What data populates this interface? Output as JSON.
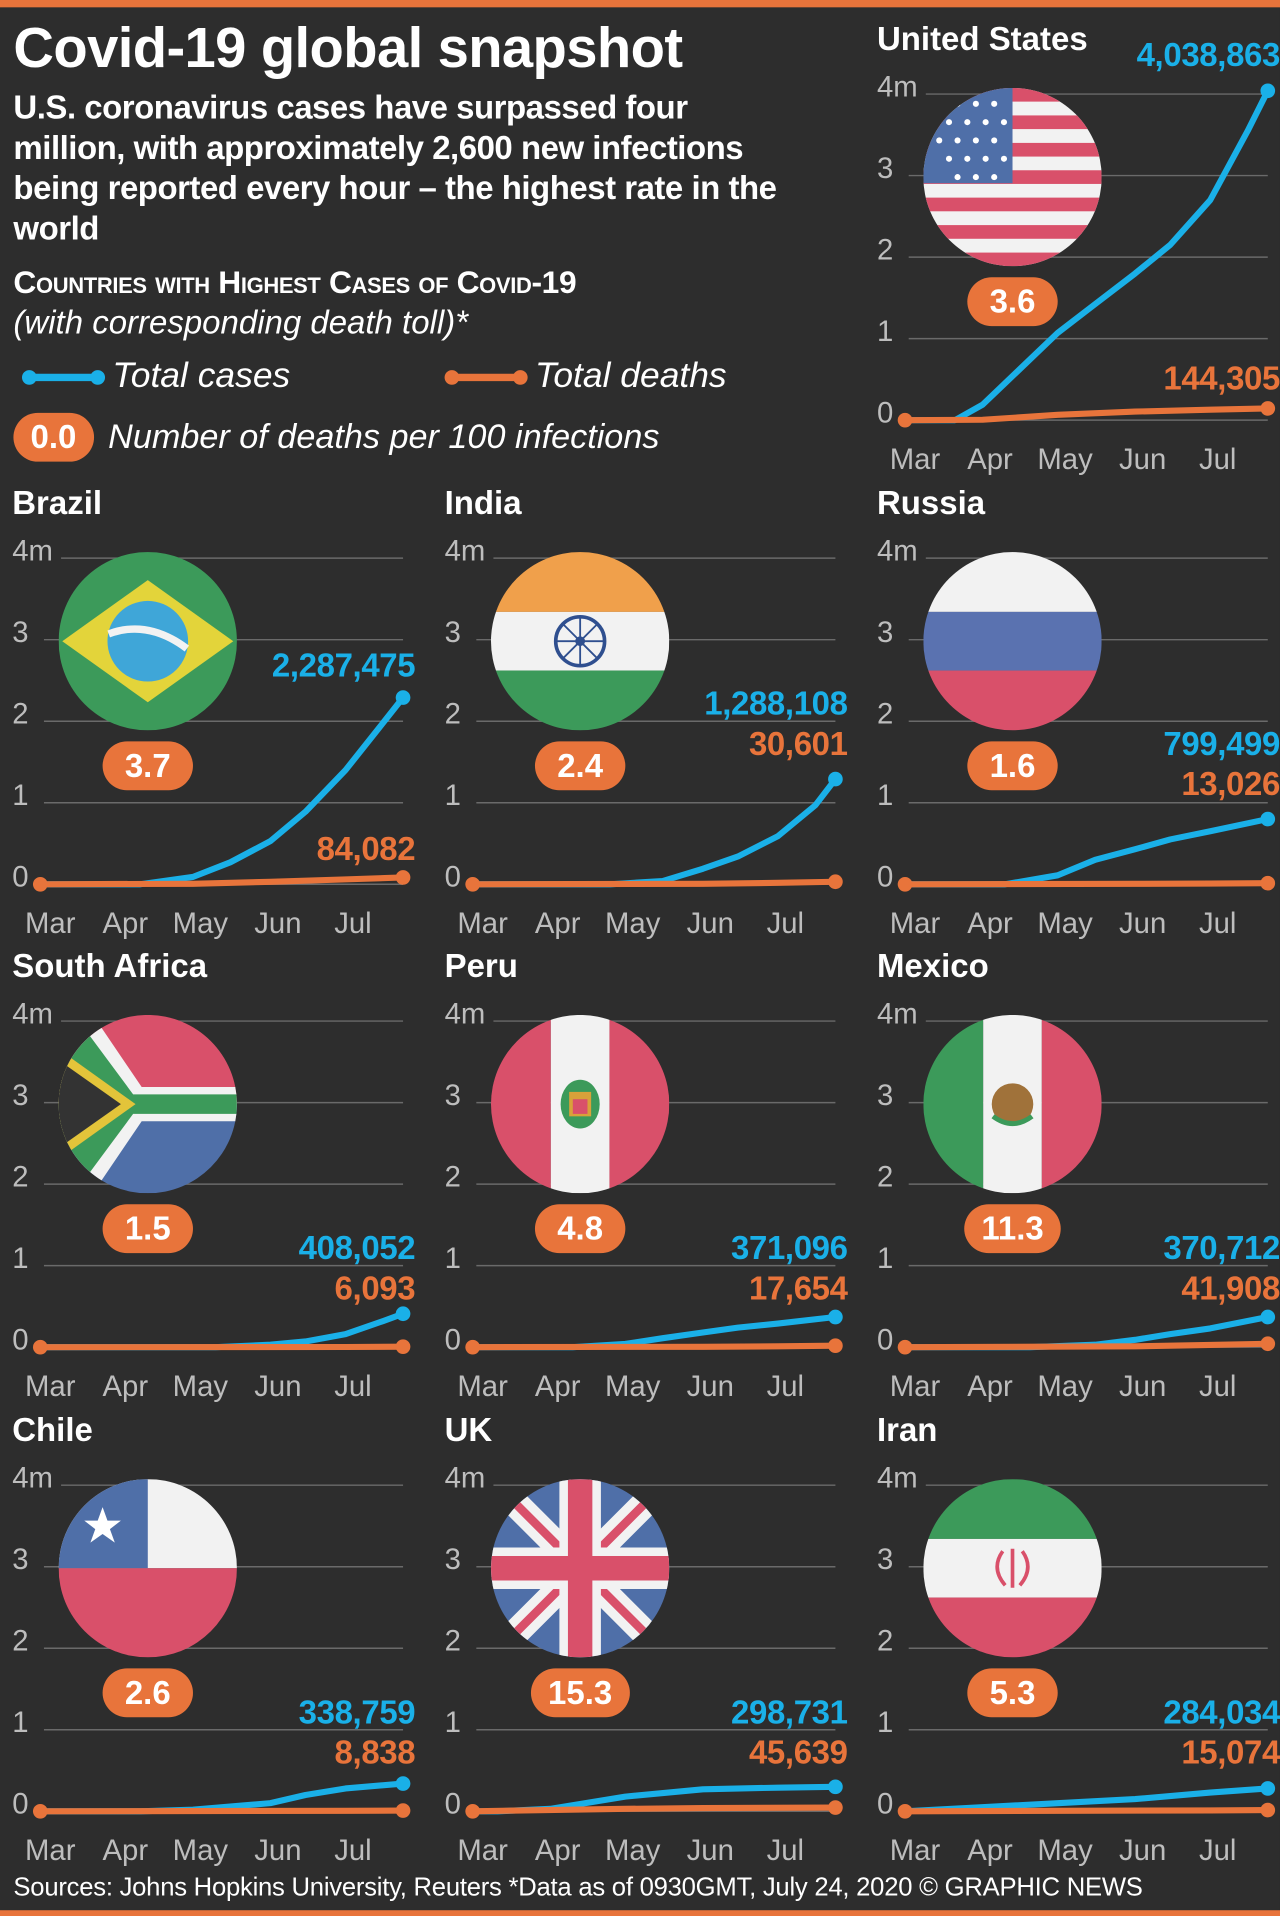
{
  "header": {
    "title": "Covid-19 global snapshot",
    "subtitle": "U.S. coronavirus cases have surpassed four million, with approximately 2,600 new infections being reported every hour – the highest rate in the world",
    "section_heading": "Countries with Highest Cases of Covid-19",
    "section_subheading": "(with corresponding death toll)*"
  },
  "legend": {
    "cases_label": "Total cases",
    "deaths_label": "Total deaths",
    "rate_example": "0.0",
    "rate_label": "Number of deaths per 100 infections"
  },
  "colors": {
    "cases": "#1ab0e8",
    "deaths": "#e8743b",
    "background": "#2d2d2d",
    "grid": "#6a6a6a",
    "axis_text": "#bdbdbd"
  },
  "footer": {
    "sources": "Sources: Johns Hopkins University, Reuters  *Data as of 0930GMT, July 24, 2020  © GRAPHIC NEWS"
  },
  "chart_data": [
    {
      "type": "line",
      "country": "United States",
      "death_rate": "3.6",
      "cases_label": "4,038,863",
      "deaths_label": "144,305",
      "ylim": [
        0,
        4
      ],
      "yticks": [
        "0",
        "1",
        "2",
        "3",
        "4m"
      ],
      "months": [
        "Mar",
        "Apr",
        "May",
        "Jun",
        "Jul"
      ],
      "x_unit": "days since Mar 1",
      "y_unit": "millions",
      "series": [
        {
          "name": "Total cases",
          "points": [
            [
              0,
              0
            ],
            [
              20,
              0
            ],
            [
              31,
              0.19
            ],
            [
              45,
              0.6
            ],
            [
              61,
              1.07
            ],
            [
              75,
              1.4
            ],
            [
              92,
              1.8
            ],
            [
              106,
              2.15
            ],
            [
              122,
              2.7
            ],
            [
              137,
              3.55
            ],
            [
              145,
              4.04
            ]
          ]
        },
        {
          "name": "Total deaths",
          "points": [
            [
              0,
              0
            ],
            [
              31,
              0.005
            ],
            [
              61,
              0.065
            ],
            [
              92,
              0.105
            ],
            [
              122,
              0.128
            ],
            [
              145,
              0.144
            ]
          ]
        }
      ]
    },
    {
      "type": "line",
      "country": "Brazil",
      "death_rate": "3.7",
      "cases_label": "2,287,475",
      "deaths_label": "84,082",
      "ylim": [
        0,
        4
      ],
      "yticks": [
        "0",
        "1",
        "2",
        "3",
        "4m"
      ],
      "months": [
        "Mar",
        "Apr",
        "May",
        "Jun",
        "Jul"
      ],
      "x_unit": "days since Mar 1",
      "y_unit": "millions",
      "series": [
        {
          "name": "Total cases",
          "points": [
            [
              0,
              0
            ],
            [
              40,
              0
            ],
            [
              61,
              0.09
            ],
            [
              76,
              0.27
            ],
            [
              92,
              0.53
            ],
            [
              106,
              0.89
            ],
            [
              122,
              1.4
            ],
            [
              137,
              1.98
            ],
            [
              145,
              2.29
            ]
          ]
        },
        {
          "name": "Total deaths",
          "points": [
            [
              0,
              0
            ],
            [
              61,
              0.006
            ],
            [
              92,
              0.03
            ],
            [
              122,
              0.06
            ],
            [
              145,
              0.084
            ]
          ]
        }
      ]
    },
    {
      "type": "line",
      "country": "India",
      "death_rate": "2.4",
      "cases_label": "1,288,108",
      "deaths_label": "30,601",
      "ylim": [
        0,
        4
      ],
      "yticks": [
        "0",
        "1",
        "2",
        "3",
        "4m"
      ],
      "months": [
        "Mar",
        "Apr",
        "May",
        "Jun",
        "Jul"
      ],
      "x_unit": "days since Mar 1",
      "y_unit": "millions",
      "series": [
        {
          "name": "Total cases",
          "points": [
            [
              0,
              0
            ],
            [
              55,
              0
            ],
            [
              76,
              0.04
            ],
            [
              92,
              0.19
            ],
            [
              106,
              0.34
            ],
            [
              122,
              0.59
            ],
            [
              137,
              0.97
            ],
            [
              145,
              1.29
            ]
          ]
        },
        {
          "name": "Total deaths",
          "points": [
            [
              0,
              0
            ],
            [
              92,
              0.005
            ],
            [
              122,
              0.018
            ],
            [
              145,
              0.031
            ]
          ]
        }
      ]
    },
    {
      "type": "line",
      "country": "Russia",
      "death_rate": "1.6",
      "cases_label": "799,499",
      "deaths_label": "13,026",
      "ylim": [
        0,
        4
      ],
      "yticks": [
        "0",
        "1",
        "2",
        "3",
        "4m"
      ],
      "months": [
        "Mar",
        "Apr",
        "May",
        "Jun",
        "Jul"
      ],
      "x_unit": "days since Mar 1",
      "y_unit": "millions",
      "series": [
        {
          "name": "Total cases",
          "points": [
            [
              0,
              0
            ],
            [
              40,
              0
            ],
            [
              61,
              0.11
            ],
            [
              76,
              0.3
            ],
            [
              92,
              0.43
            ],
            [
              106,
              0.55
            ],
            [
              122,
              0.65
            ],
            [
              145,
              0.8
            ]
          ]
        },
        {
          "name": "Total deaths",
          "points": [
            [
              0,
              0
            ],
            [
              92,
              0.005
            ],
            [
              122,
              0.009
            ],
            [
              145,
              0.013
            ]
          ]
        }
      ]
    },
    {
      "type": "line",
      "country": "South Africa",
      "death_rate": "1.5",
      "cases_label": "408,052",
      "deaths_label": "6,093",
      "ylim": [
        0,
        4
      ],
      "yticks": [
        "0",
        "1",
        "2",
        "3",
        "4m"
      ],
      "months": [
        "Mar",
        "Apr",
        "May",
        "Jun",
        "Jul"
      ],
      "x_unit": "days since Mar 1",
      "y_unit": "millions",
      "series": [
        {
          "name": "Total cases",
          "points": [
            [
              0,
              0
            ],
            [
              70,
              0
            ],
            [
              92,
              0.03
            ],
            [
              106,
              0.07
            ],
            [
              122,
              0.16
            ],
            [
              137,
              0.32
            ],
            [
              145,
              0.41
            ]
          ]
        },
        {
          "name": "Total deaths",
          "points": [
            [
              0,
              0
            ],
            [
              122,
              0.002
            ],
            [
              145,
              0.006
            ]
          ]
        }
      ]
    },
    {
      "type": "line",
      "country": "Peru",
      "death_rate": "4.8",
      "cases_label": "371,096",
      "deaths_label": "17,654",
      "ylim": [
        0,
        4
      ],
      "yticks": [
        "0",
        "1",
        "2",
        "3",
        "4m"
      ],
      "months": [
        "Mar",
        "Apr",
        "May",
        "Jun",
        "Jul"
      ],
      "x_unit": "days since Mar 1",
      "y_unit": "millions",
      "series": [
        {
          "name": "Total cases",
          "points": [
            [
              0,
              0
            ],
            [
              40,
              0
            ],
            [
              61,
              0.04
            ],
            [
              76,
              0.11
            ],
            [
              92,
              0.18
            ],
            [
              106,
              0.24
            ],
            [
              122,
              0.29
            ],
            [
              145,
              0.37
            ]
          ]
        },
        {
          "name": "Total deaths",
          "points": [
            [
              0,
              0
            ],
            [
              92,
              0.005
            ],
            [
              122,
              0.01
            ],
            [
              145,
              0.018
            ]
          ]
        }
      ]
    },
    {
      "type": "line",
      "country": "Mexico",
      "death_rate": "11.3",
      "cases_label": "370,712",
      "deaths_label": "41,908",
      "ylim": [
        0,
        4
      ],
      "yticks": [
        "0",
        "1",
        "2",
        "3",
        "4m"
      ],
      "months": [
        "Mar",
        "Apr",
        "May",
        "Jun",
        "Jul"
      ],
      "x_unit": "days since Mar 1",
      "y_unit": "millions",
      "series": [
        {
          "name": "Total cases",
          "points": [
            [
              0,
              0
            ],
            [
              50,
              0
            ],
            [
              76,
              0.03
            ],
            [
              92,
              0.09
            ],
            [
              106,
              0.16
            ],
            [
              122,
              0.23
            ],
            [
              145,
              0.37
            ]
          ]
        },
        {
          "name": "Total deaths",
          "points": [
            [
              0,
              0
            ],
            [
              92,
              0.01
            ],
            [
              122,
              0.027
            ],
            [
              145,
              0.042
            ]
          ]
        }
      ]
    },
    {
      "type": "line",
      "country": "Chile",
      "death_rate": "2.6",
      "cases_label": "338,759",
      "deaths_label": "8,838",
      "ylim": [
        0,
        4
      ],
      "yticks": [
        "0",
        "1",
        "2",
        "3",
        "4m"
      ],
      "months": [
        "Mar",
        "Apr",
        "May",
        "Jun",
        "Jul"
      ],
      "x_unit": "days since Mar 1",
      "y_unit": "millions",
      "series": [
        {
          "name": "Total cases",
          "points": [
            [
              0,
              0
            ],
            [
              40,
              0
            ],
            [
              61,
              0.02
            ],
            [
              92,
              0.1
            ],
            [
              106,
              0.2
            ],
            [
              122,
              0.28
            ],
            [
              145,
              0.34
            ]
          ]
        },
        {
          "name": "Total deaths",
          "points": [
            [
              0,
              0
            ],
            [
              122,
              0.006
            ],
            [
              145,
              0.009
            ]
          ]
        }
      ]
    },
    {
      "type": "line",
      "country": "UK",
      "death_rate": "15.3",
      "cases_label": "298,731",
      "deaths_label": "45,639",
      "ylim": [
        0,
        4
      ],
      "yticks": [
        "0",
        "1",
        "2",
        "3",
        "4m"
      ],
      "months": [
        "Mar",
        "Apr",
        "May",
        "Jun",
        "Jul"
      ],
      "x_unit": "days since Mar 1",
      "y_unit": "millions",
      "series": [
        {
          "name": "Total cases",
          "points": [
            [
              0,
              0
            ],
            [
              10,
              0
            ],
            [
              31,
              0.03
            ],
            [
              61,
              0.18
            ],
            [
              92,
              0.27
            ],
            [
              122,
              0.29
            ],
            [
              145,
              0.3
            ]
          ]
        },
        {
          "name": "Total deaths",
          "points": [
            [
              0,
              0
            ],
            [
              61,
              0.03
            ],
            [
              92,
              0.04
            ],
            [
              145,
              0.046
            ]
          ]
        }
      ]
    },
    {
      "type": "line",
      "country": "Iran",
      "death_rate": "5.3",
      "cases_label": "284,034",
      "deaths_label": "15,074",
      "ylim": [
        0,
        4
      ],
      "yticks": [
        "0",
        "1",
        "2",
        "3",
        "4m"
      ],
      "months": [
        "Mar",
        "Apr",
        "May",
        "Jun",
        "Jul"
      ],
      "x_unit": "days since Mar 1",
      "y_unit": "millions",
      "series": [
        {
          "name": "Total cases",
          "points": [
            [
              0,
              0
            ],
            [
              31,
              0.05
            ],
            [
              61,
              0.1
            ],
            [
              92,
              0.15
            ],
            [
              122,
              0.23
            ],
            [
              145,
              0.28
            ]
          ]
        },
        {
          "name": "Total deaths",
          "points": [
            [
              0,
              0
            ],
            [
              61,
              0.006
            ],
            [
              122,
              0.011
            ],
            [
              145,
              0.015
            ]
          ]
        }
      ]
    }
  ]
}
